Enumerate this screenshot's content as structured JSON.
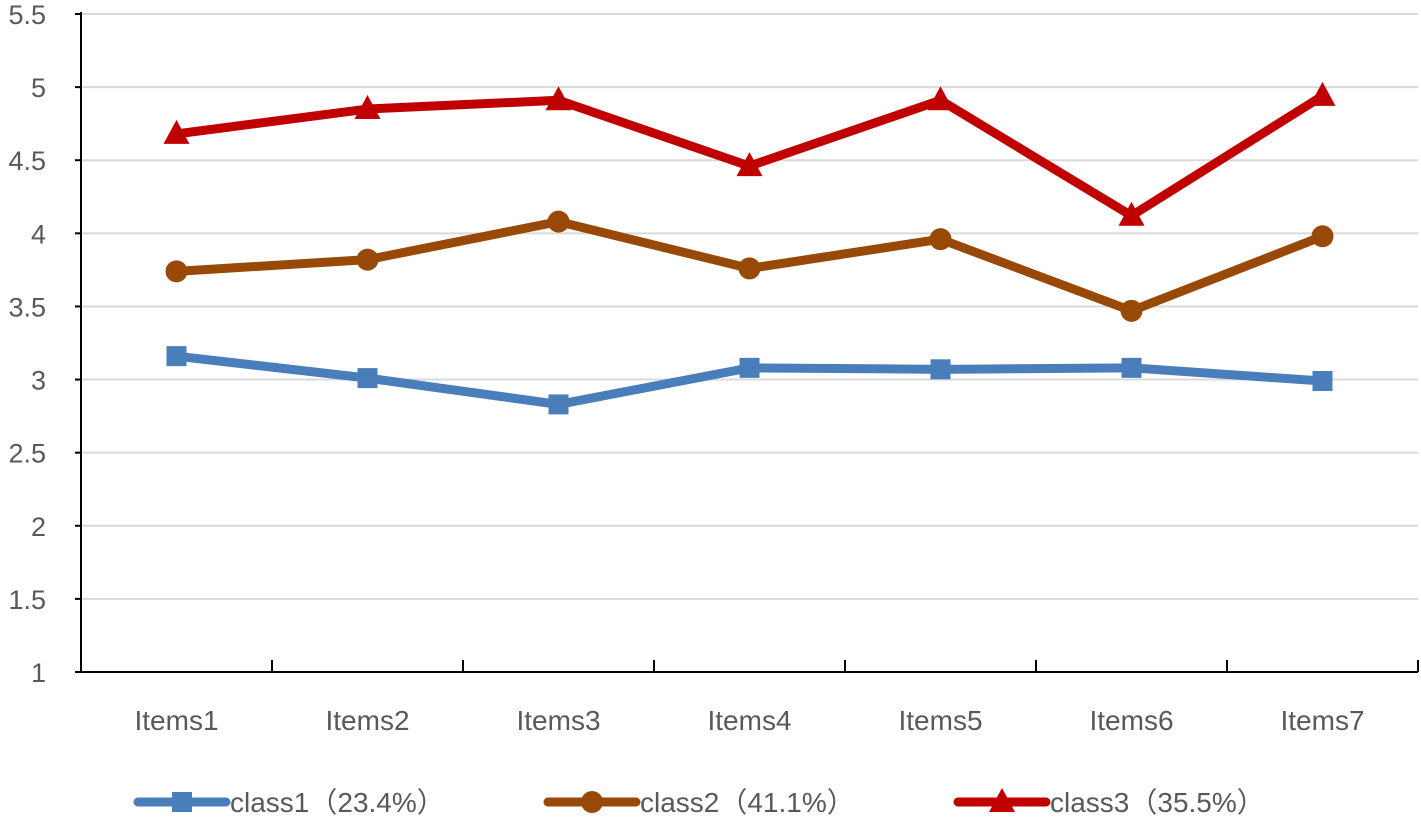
{
  "chart_data": {
    "type": "line",
    "categories": [
      "Items1",
      "Items2",
      "Items3",
      "Items4",
      "Items5",
      "Items6",
      "Items7"
    ],
    "series": [
      {
        "name": "class1（23.4%）",
        "color": "#4A7EBB",
        "marker": "square",
        "values": [
          3.16,
          3.01,
          2.83,
          3.08,
          3.07,
          3.08,
          2.99
        ]
      },
      {
        "name": "class2（41.1%）",
        "color": "#984807",
        "marker": "circle",
        "values": [
          3.74,
          3.82,
          4.08,
          3.76,
          3.96,
          3.47,
          3.98
        ]
      },
      {
        "name": "class3（35.5%）",
        "color": "#C00000",
        "marker": "triangle",
        "values": [
          4.68,
          4.85,
          4.91,
          4.46,
          4.91,
          4.12,
          4.94
        ]
      }
    ],
    "ylim": [
      1,
      5.5
    ],
    "yticks": [
      "1",
      "1.5",
      "2",
      "2.5",
      "3",
      "3.5",
      "4",
      "4.5",
      "5",
      "5.5"
    ],
    "grid": true,
    "legend_position": "bottom",
    "title": "",
    "xlabel": "",
    "ylabel": ""
  }
}
